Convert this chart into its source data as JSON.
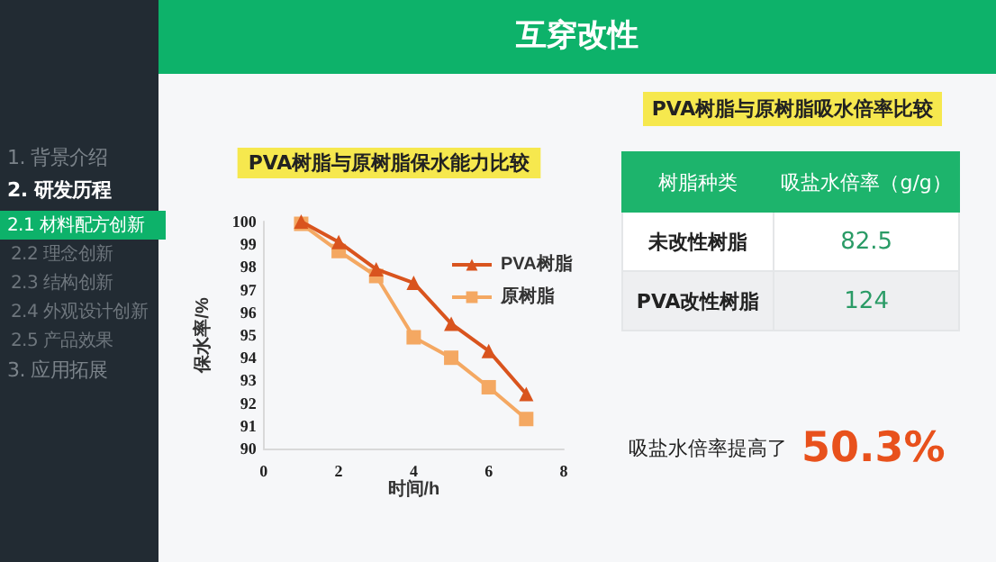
{
  "chart_data": [
    {
      "type": "other",
      "title": "互穿改性",
      "annotations": [
        "1. 背景介绍",
        "2. 研发历程",
        "2.1 材料配方创新",
        "2.2 理念创新",
        "2.3 结构创新",
        "2.4 外观设计创新",
        "2.5 产品效果",
        "3. 应用拓展"
      ]
    },
    {
      "type": "line",
      "title": "PVA树脂与原树脂保水能力比较",
      "xlabel": "时间/h",
      "ylabel": "保水率/%",
      "x": [
        1,
        2,
        3,
        4,
        5,
        6,
        7
      ],
      "series": [
        {
          "name": "PVA树脂",
          "color": "#d9541e",
          "marker": "triangle",
          "values": [
            100,
            99.1,
            97.9,
            97.3,
            95.5,
            94.3,
            92.4
          ]
        },
        {
          "name": "原树脂",
          "color": "#f4a862",
          "marker": "square",
          "values": [
            99.9,
            98.7,
            97.6,
            94.9,
            94.0,
            92.7,
            91.3
          ]
        }
      ],
      "xlim": [
        0,
        8
      ],
      "xticks": [
        0,
        2,
        4,
        6,
        8
      ],
      "ylim": [
        90,
        100
      ],
      "yticks": [
        90,
        91,
        92,
        93,
        94,
        95,
        96,
        97,
        98,
        99,
        100
      ],
      "grid": false,
      "legend": "top right",
      "line_style": "solid"
    },
    {
      "type": "other",
      "title": "PVA树脂与原树脂吸水倍率比较",
      "xlabel": "树脂种类",
      "ylabel": "吸盐水倍率（g/g）",
      "categories": [
        "未改性树脂",
        "PVA改性树脂"
      ],
      "values": [
        82.5,
        124
      ],
      "data_labels": true,
      "annotations": [
        "吸盐水倍率提高了",
        "50.3%"
      ]
    }
  ]
}
